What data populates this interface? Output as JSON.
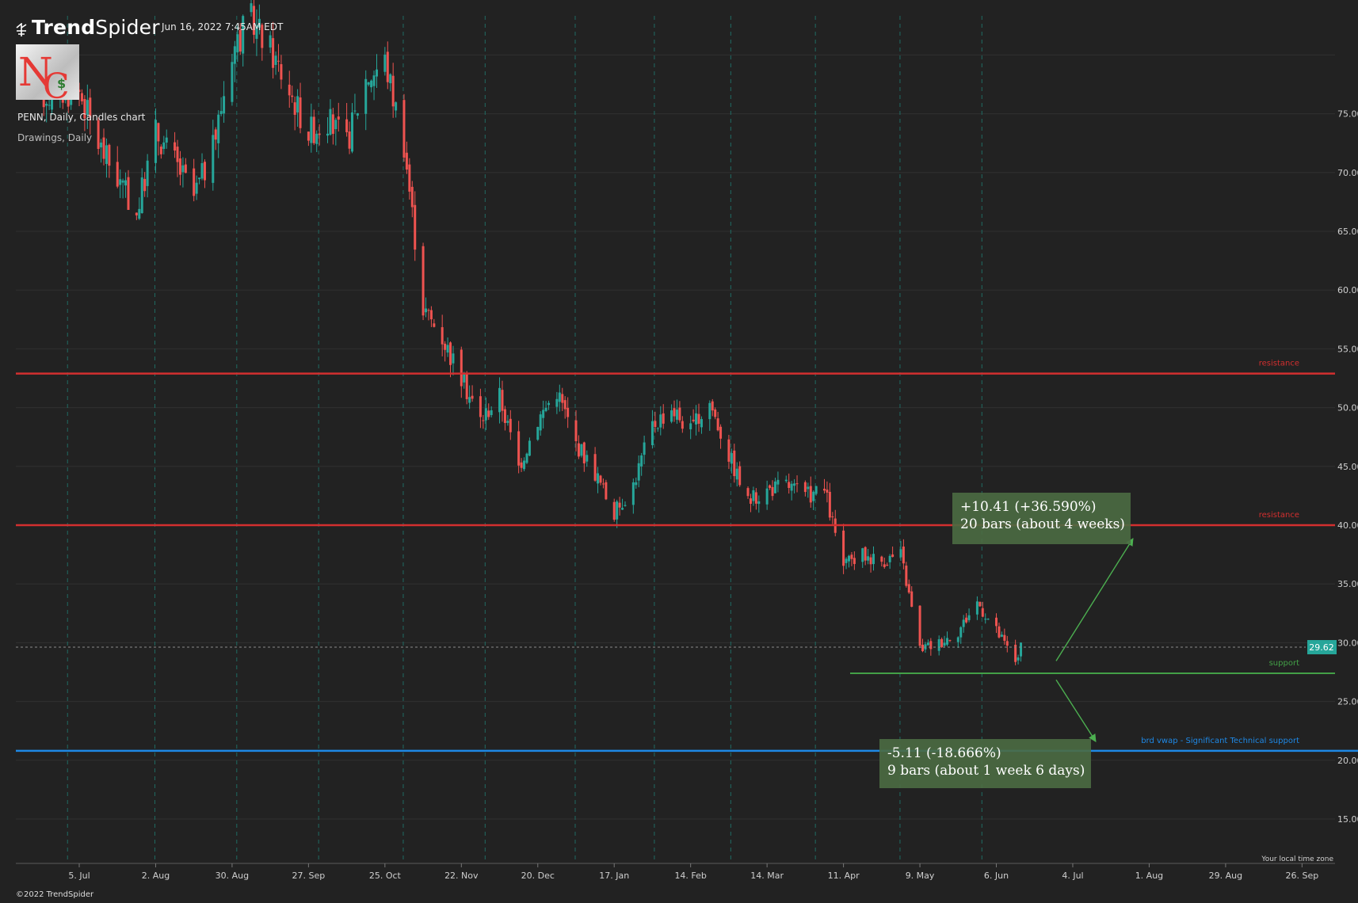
{
  "header": {
    "brand_trend": "Trend",
    "brand_spider": "Spider",
    "datetime": "Jun 16, 2022 7:45AM EDT",
    "chart_title": "PENN, Daily, Candles chart",
    "drawings_label": "Drawings, Daily",
    "copyright": "©2022 TrendSpider",
    "timezone_label": "Your local time zone"
  },
  "colors": {
    "background": "#222222",
    "grid": "#303030",
    "up_candle": "#26a69a",
    "down_candle": "#ef5350",
    "resistance": "#d32f2f",
    "support": "#43a047",
    "vwap": "#1e88e5",
    "price_tag": "#26a69a",
    "measure_box": "#4b6b43"
  },
  "icons": [
    "trendspider-logo-icon",
    "nc-logo-icon"
  ],
  "chart_data": {
    "type": "candlestick",
    "symbol": "PENN",
    "interval": "Daily",
    "y_ticks": [
      15,
      20,
      25,
      30,
      35,
      40,
      45,
      50,
      55,
      60,
      65,
      70,
      75
    ],
    "ylim": [
      12,
      84
    ],
    "x_ticks": [
      "5. Jul",
      "2. Aug",
      "30. Aug",
      "27. Sep",
      "25. Oct",
      "22. Nov",
      "20. Dec",
      "17. Jan",
      "14. Feb",
      "14. Mar",
      "11. Apr",
      "9. May",
      "6. Jun",
      "4. Jul",
      "1. Aug",
      "29. Aug",
      "26. Sep"
    ],
    "last_price": "29.62",
    "last_price_value": 29.62,
    "horizontal_levels": [
      {
        "label": "resistance",
        "price": 52.9,
        "color": "#d32f2f"
      },
      {
        "label": "resistance",
        "price": 40.0,
        "color": "#d32f2f"
      },
      {
        "label": "support",
        "price": 27.4,
        "color": "#43a047"
      },
      {
        "label": "brd vwap - Significant Technical support",
        "price": 20.8,
        "color": "#1e88e5"
      }
    ],
    "measurements": [
      {
        "line1": "+10.41 (+36.590%)",
        "line2": "20 bars (about 4 weeks)",
        "from": 28.45,
        "to": 38.86
      },
      {
        "line1": "-5.11 (-18.666%)",
        "line2": "9 bars (about 1 week 6 days)",
        "from": 27.38,
        "to": 22.27
      }
    ],
    "price_path": [
      [
        "2021-06-21",
        76.5
      ],
      [
        "2021-07-05",
        77.0
      ],
      [
        "2021-07-12",
        72.5
      ],
      [
        "2021-07-19",
        69.5
      ],
      [
        "2021-07-26",
        66.5
      ],
      [
        "2021-08-02",
        73.5
      ],
      [
        "2021-08-09",
        71.0
      ],
      [
        "2021-08-16",
        68.0
      ],
      [
        "2021-08-23",
        72.0
      ],
      [
        "2021-08-30",
        80.5
      ],
      [
        "2021-09-06",
        83.0
      ],
      [
        "2021-09-13",
        80.5
      ],
      [
        "2021-09-20",
        77.0
      ],
      [
        "2021-09-27",
        73.5
      ],
      [
        "2021-10-04",
        74.5
      ],
      [
        "2021-10-11",
        72.5
      ],
      [
        "2021-10-18",
        78.0
      ],
      [
        "2021-10-25",
        79.5
      ],
      [
        "2021-11-01",
        72.5
      ],
      [
        "2021-11-08",
        58.5
      ],
      [
        "2021-11-15",
        56.0
      ],
      [
        "2021-11-22",
        52.5
      ],
      [
        "2021-11-29",
        49.0
      ],
      [
        "2021-12-06",
        51.0
      ],
      [
        "2021-12-13",
        45.0
      ],
      [
        "2021-12-20",
        49.0
      ],
      [
        "2021-12-27",
        51.5
      ],
      [
        "2022-01-03",
        47.0
      ],
      [
        "2022-01-10",
        44.5
      ],
      [
        "2022-01-17",
        41.0
      ],
      [
        "2022-01-24",
        43.5
      ],
      [
        "2022-01-31",
        48.5
      ],
      [
        "2022-02-07",
        50.0
      ],
      [
        "2022-02-14",
        48.0
      ],
      [
        "2022-02-21",
        50.5
      ],
      [
        "2022-02-28",
        46.0
      ],
      [
        "2022-03-07",
        42.0
      ],
      [
        "2022-03-14",
        43.0
      ],
      [
        "2022-03-21",
        43.5
      ],
      [
        "2022-03-28",
        42.5
      ],
      [
        "2022-04-04",
        43.0
      ],
      [
        "2022-04-11",
        36.5
      ],
      [
        "2022-04-18",
        37.5
      ],
      [
        "2022-04-25",
        37.0
      ],
      [
        "2022-05-02",
        37.5
      ],
      [
        "2022-05-09",
        29.5
      ],
      [
        "2022-05-16",
        30.0
      ],
      [
        "2022-05-23",
        31.0
      ],
      [
        "2022-05-30",
        33.5
      ],
      [
        "2022-06-06",
        31.0
      ],
      [
        "2022-06-13",
        28.5
      ],
      [
        "2022-06-15",
        29.62
      ]
    ]
  }
}
